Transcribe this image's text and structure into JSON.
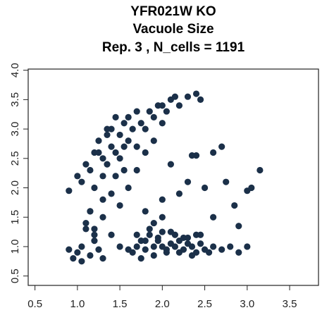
{
  "chart_data": {
    "type": "scatter",
    "title_lines": [
      "YFR021W KO",
      "Vacuole Size",
      "Rep. 3 , N_cells = 1191"
    ],
    "xlim": [
      0.42,
      3.84
    ],
    "ylim": [
      0.34,
      4.02
    ],
    "xticks": [
      0.5,
      {
        "value": 1,
        "label": "1.0"
      },
      1.5,
      {
        "value": 2,
        "label": "2.0"
      },
      2.5,
      {
        "value": 3,
        "label": "3.0"
      },
      3.5
    ],
    "yticks": [
      0.5,
      {
        "value": 1,
        "label": "1.0"
      },
      1.5,
      {
        "value": 2,
        "label": "2.0"
      },
      2.5,
      {
        "value": 3,
        "label": "3.0"
      },
      3.5,
      {
        "value": 4,
        "label": "4.0"
      }
    ],
    "series": [
      {
        "color": "#1b3049",
        "x": [
          1.0,
          1.05,
          1.1,
          1.15,
          1.2,
          1.2,
          1.25,
          1.3,
          1.3,
          1.35,
          1.35,
          1.4,
          1.4,
          1.45,
          1.45,
          1.5,
          1.5,
          1.55,
          1.55,
          1.6,
          1.6,
          1.65,
          1.7,
          1.7,
          1.75,
          1.8,
          1.85,
          1.9,
          1.95,
          2.0,
          2.05,
          2.1,
          2.15,
          2.2,
          2.3,
          2.4,
          2.45,
          1.3,
          1.4,
          1.5,
          1.6,
          1.7,
          1.25,
          1.35,
          1.45,
          1.55,
          1.8,
          1.9,
          2.0,
          1.15,
          1.2,
          1.6,
          1.65,
          1.7,
          1.75,
          1.8,
          1.85,
          1.9,
          1.95,
          2.0,
          2.05,
          2.1,
          2.15,
          2.2,
          2.25,
          2.3,
          2.35,
          2.4,
          2.45,
          2.5,
          1.7,
          1.8,
          1.9,
          2.0,
          2.1,
          2.2,
          2.3,
          2.4,
          1.75,
          1.85,
          1.95,
          2.05,
          2.15,
          2.25,
          2.35,
          2.45,
          2.55,
          2.6,
          2.7,
          2.8,
          2.9,
          3.0,
          0.9,
          0.95,
          1.0,
          1.05,
          1.1,
          1.15,
          1.2,
          1.25,
          1.3,
          1.1,
          1.15,
          1.05,
          1.2,
          1.3,
          1.4,
          1.5,
          0.9,
          1.8,
          2.0,
          2.1,
          2.3,
          2.5,
          2.6,
          2.7,
          2.75,
          2.85,
          2.9,
          3.0,
          3.05,
          3.15,
          2.35,
          2.4,
          2.2,
          1.9,
          2.0,
          2.6
        ],
        "y": [
          2.2,
          2.1,
          2.4,
          2.3,
          2.6,
          2.0,
          2.8,
          2.5,
          2.2,
          2.9,
          2.4,
          2.7,
          3.0,
          2.6,
          2.2,
          2.9,
          2.5,
          3.1,
          2.7,
          2.8,
          3.2,
          3.0,
          2.7,
          3.3,
          3.1,
          3.0,
          3.3,
          3.2,
          3.4,
          3.4,
          3.3,
          3.5,
          3.55,
          3.4,
          3.55,
          3.6,
          3.5,
          1.8,
          1.9,
          1.7,
          2.0,
          2.3,
          2.6,
          3.0,
          3.2,
          2.3,
          2.6,
          2.8,
          3.1,
          1.6,
          1.3,
          0.95,
          0.9,
          1.0,
          1.1,
          0.95,
          1.2,
          1.0,
          1.15,
          1.25,
          0.9,
          1.05,
          1.2,
          1.1,
          0.95,
          1.15,
          1.0,
          0.9,
          1.2,
          0.95,
          1.2,
          1.1,
          0.85,
          1.0,
          1.25,
          0.9,
          1.05,
          1.2,
          0.8,
          1.3,
          1.1,
          0.95,
          1.0,
          1.15,
          0.85,
          1.05,
          0.9,
          1.0,
          0.95,
          1.0,
          0.9,
          1.0,
          0.95,
          0.8,
          0.9,
          1.0,
          1.3,
          0.85,
          1.1,
          0.95,
          0.8,
          1.4,
          1.6,
          0.75,
          1.2,
          1.5,
          1.2,
          1.0,
          1.95,
          1.6,
          1.8,
          2.4,
          2.1,
          2.0,
          1.5,
          2.7,
          2.1,
          1.7,
          1.35,
          1.95,
          2.0,
          2.3,
          2.55,
          2.55,
          1.9,
          1.4,
          1.5,
          2.6
        ]
      }
    ]
  }
}
